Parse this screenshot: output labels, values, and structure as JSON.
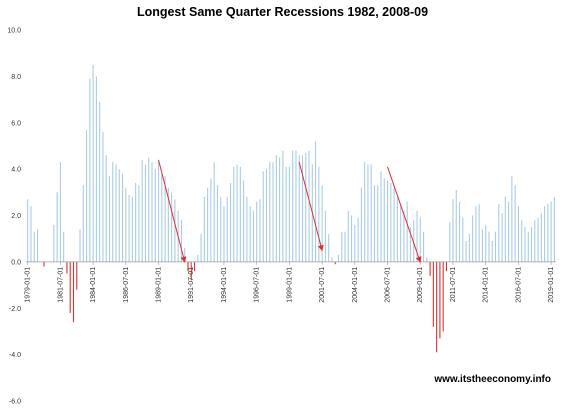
{
  "chart_data": {
    "type": "bar",
    "title": "Longest Same Quarter Recessions 1982, 2008-09",
    "watermark": "www.itstheeconomy.info",
    "xlabel": "",
    "ylabel": "",
    "ylim": [
      -6.0,
      10.0
    ],
    "yticks": [
      "10.0",
      "8.0",
      "6.0",
      "4.0",
      "2.0",
      "0.0",
      "-2.0",
      "-4.0",
      "-6.0"
    ],
    "grid": false,
    "legend": "none",
    "colors": {
      "positive": "#a8cce8",
      "negative": "#e03030",
      "arrow": "#e03030",
      "axis": "#999999"
    },
    "x_start": "1979-01-01",
    "x_step_months": 3,
    "xtick_every": 10,
    "x_end": "2018-01-01",
    "values": [
      2.7,
      2.4,
      1.3,
      1.4,
      0.0,
      -0.2,
      0.0,
      0.0,
      1.6,
      3.0,
      4.3,
      1.3,
      -0.5,
      -2.2,
      -2.6,
      -1.2,
      1.4,
      3.3,
      5.7,
      7.9,
      8.5,
      8.0,
      6.9,
      5.6,
      4.6,
      3.7,
      4.3,
      4.2,
      4.0,
      3.8,
      3.2,
      2.9,
      2.8,
      3.4,
      3.3,
      4.4,
      4.2,
      4.5,
      4.3,
      4.0,
      4.3,
      3.8,
      3.7,
      3.2,
      3.0,
      2.7,
      2.2,
      1.8,
      0.6,
      -0.4,
      -0.8,
      -0.4,
      0.3,
      1.2,
      2.8,
      3.2,
      3.6,
      4.3,
      3.3,
      2.8,
      2.4,
      2.8,
      3.4,
      4.1,
      4.2,
      4.1,
      3.5,
      2.8,
      2.4,
      2.2,
      2.6,
      2.7,
      3.9,
      4.0,
      4.3,
      4.3,
      4.6,
      4.5,
      4.8,
      4.1,
      4.1,
      4.8,
      4.8,
      4.6,
      4.6,
      4.7,
      4.8,
      4.2,
      5.2,
      4.1,
      3.3,
      2.2,
      1.2,
      0.2,
      -0.1,
      0.3,
      1.3,
      1.3,
      2.2,
      2.0,
      1.6,
      1.9,
      3.2,
      4.3,
      4.2,
      4.2,
      3.3,
      3.3,
      3.9,
      3.6,
      3.5,
      3.4,
      3.2,
      2.8,
      2.5,
      2.2,
      2.6,
      1.5,
      1.8,
      2.2,
      1.9,
      1.3,
      0.2,
      -0.6,
      -2.8,
      -3.9,
      -3.3,
      -3.0,
      -0.4,
      1.7,
      2.7,
      3.1,
      2.6,
      1.9,
      0.9,
      1.2,
      2.0,
      2.4,
      2.5,
      1.4,
      1.6,
      1.3,
      0.9,
      1.3,
      2.5,
      2.1,
      2.8,
      2.6,
      3.7,
      3.3,
      2.4,
      1.8,
      1.5,
      1.3,
      1.5,
      1.8,
      1.9,
      2.1,
      2.4,
      2.5,
      2.6,
      2.8
    ],
    "arrows": [
      {
        "from": [
          "1989-01-01",
          4.4
        ],
        "to": [
          "1991-01-01",
          0.0
        ]
      },
      {
        "from": [
          "1999-10-01",
          4.3
        ],
        "to": [
          "2001-07-01",
          0.5
        ]
      },
      {
        "from": [
          "2006-07-01",
          4.1
        ],
        "to": [
          "2009-01-01",
          0.0
        ]
      }
    ]
  }
}
